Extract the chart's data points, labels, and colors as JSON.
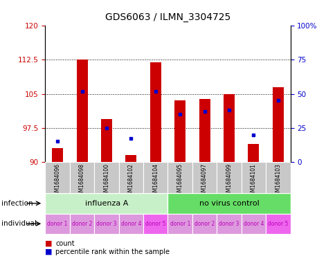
{
  "title": "GDS6063 / ILMN_3304725",
  "samples": [
    "GSM1684096",
    "GSM1684098",
    "GSM1684100",
    "GSM1684102",
    "GSM1684104",
    "GSM1684095",
    "GSM1684097",
    "GSM1684099",
    "GSM1684101",
    "GSM1684103"
  ],
  "count_values": [
    93.0,
    112.5,
    99.5,
    91.5,
    112.0,
    103.5,
    103.8,
    105.0,
    94.0,
    106.5
  ],
  "percentile_values": [
    15,
    52,
    25,
    17,
    52,
    35,
    37,
    38,
    20,
    45
  ],
  "ylim_left": [
    90,
    120
  ],
  "ylim_right": [
    0,
    100
  ],
  "yticks_left": [
    90,
    97.5,
    105,
    112.5,
    120
  ],
  "yticks_right": [
    0,
    25,
    50,
    75,
    100
  ],
  "infection_groups": [
    {
      "label": "influenza A",
      "start": 0,
      "end": 5,
      "color": "#c8f0c8"
    },
    {
      "label": "no virus control",
      "start": 5,
      "end": 10,
      "color": "#66dd66"
    }
  ],
  "individual_labels": [
    "donor 1",
    "donor 2",
    "donor 3",
    "donor 4",
    "donor 5",
    "donor 1",
    "donor 2",
    "donor 3",
    "donor 4",
    "donor 5"
  ],
  "individual_alt_color": "#ee66ee",
  "individual_base_color": "#dd99dd",
  "bar_color": "#cc0000",
  "percentile_color": "#0000cc",
  "background_color": "#ffffff",
  "sample_bg_color": "#c8c8c8",
  "left_axis_color": "#cc0000",
  "right_axis_color": "#0000cc",
  "label_color_individual": "#bb00bb"
}
